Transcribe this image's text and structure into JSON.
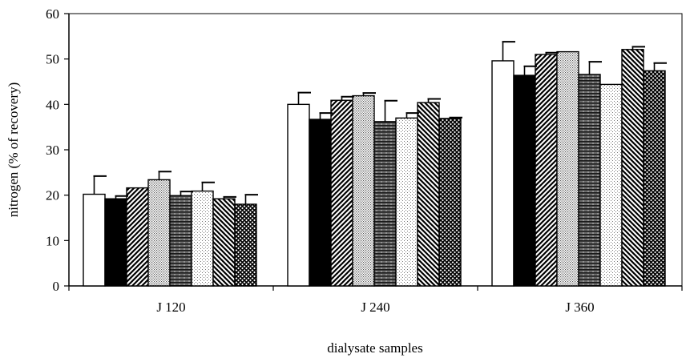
{
  "chart_data": {
    "type": "bar",
    "title": "",
    "xlabel": "dialysate samples",
    "ylabel": "nitrogen (% of recovery)",
    "ylim": [
      0,
      60
    ],
    "yticks": [
      0,
      10,
      20,
      30,
      40,
      50,
      60
    ],
    "grid": false,
    "legend": "none",
    "categories": [
      "J 120",
      "J 240",
      "J 360"
    ],
    "series": [
      {
        "pattern": "white",
        "values": [
          20.2,
          40.0,
          49.6
        ],
        "errors": [
          4.0,
          2.6,
          4.2
        ]
      },
      {
        "pattern": "black",
        "values": [
          19.2,
          36.7,
          46.4
        ],
        "errors": [
          0.6,
          1.4,
          2.0
        ]
      },
      {
        "pattern": "diagonal-right",
        "values": [
          21.6,
          40.9,
          51.0
        ],
        "errors": [
          0.0,
          0.8,
          0.4
        ]
      },
      {
        "pattern": "fine-dots",
        "values": [
          23.4,
          41.9,
          51.6
        ],
        "errors": [
          1.8,
          0.6,
          0.0
        ]
      },
      {
        "pattern": "horizontal",
        "values": [
          19.9,
          36.2,
          46.6
        ],
        "errors": [
          0.9,
          4.6,
          2.8
        ]
      },
      {
        "pattern": "light-dots",
        "values": [
          20.9,
          37.0,
          44.4
        ],
        "errors": [
          1.9,
          1.1,
          0.0
        ]
      },
      {
        "pattern": "diagonal-left",
        "values": [
          19.2,
          40.4,
          52.1
        ],
        "errors": [
          0.4,
          0.8,
          0.6
        ]
      },
      {
        "pattern": "crosshatch",
        "values": [
          18.0,
          36.9,
          47.4
        ],
        "errors": [
          2.1,
          0.2,
          1.7
        ]
      }
    ]
  }
}
